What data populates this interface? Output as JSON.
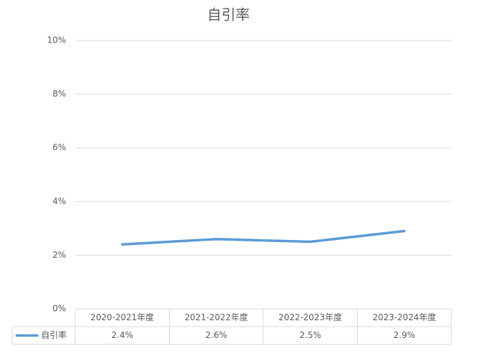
{
  "chart_data": {
    "type": "line",
    "title": "自引率",
    "categories": [
      "2020-2021年度",
      "2021-2022年度",
      "2022-2023年度",
      "2023-2024年度"
    ],
    "series": [
      {
        "name": "自引率",
        "color": "#5b9bd5",
        "values": [
          2.4,
          2.6,
          2.5,
          2.9
        ],
        "value_labels": [
          "2.4%",
          "2.6%",
          "2.5%",
          "2.9%"
        ]
      }
    ],
    "ylim": [
      0,
      10
    ],
    "yticks": [
      {
        "value": 0,
        "label": "0%"
      },
      {
        "value": 2,
        "label": "2%"
      },
      {
        "value": 4,
        "label": "4%"
      },
      {
        "value": 6,
        "label": "6%"
      },
      {
        "value": 8,
        "label": "8%"
      },
      {
        "value": 10,
        "label": "10%"
      }
    ],
    "grid": true
  }
}
